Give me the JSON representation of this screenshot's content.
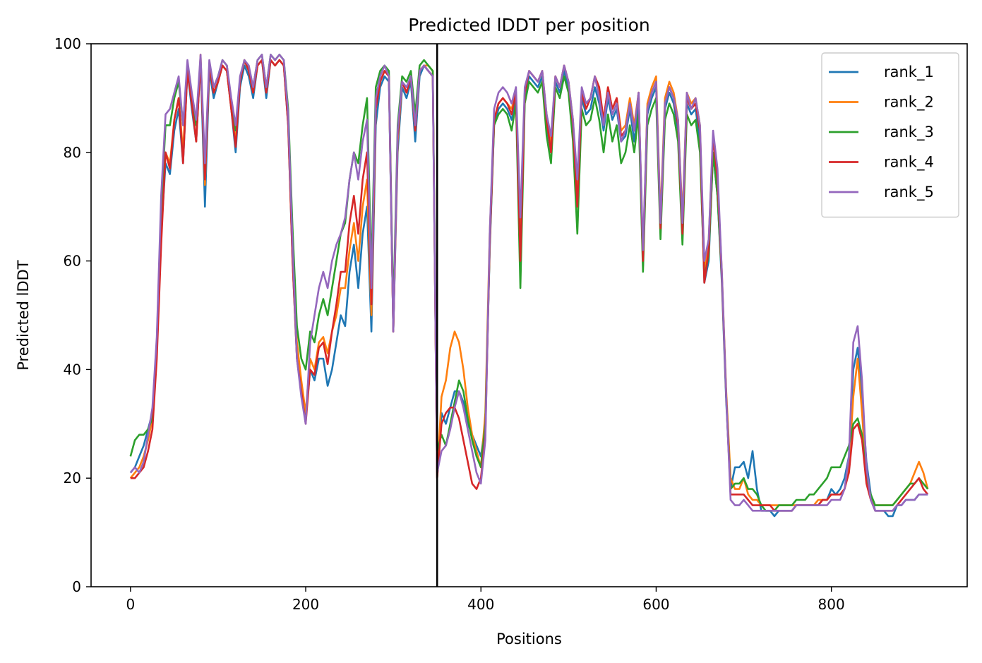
{
  "chart_data": {
    "type": "line",
    "title": "Predicted lDDT per position",
    "xlabel": "Positions",
    "ylabel": "Predicted lDDT",
    "xlim": [
      -45,
      955
    ],
    "ylim": [
      0,
      100
    ],
    "xticks": [
      0,
      200,
      400,
      600,
      800
    ],
    "yticks": [
      0,
      20,
      40,
      60,
      80,
      100
    ],
    "grid": false,
    "legend_position": "top-right",
    "vline_x": 350,
    "series": [
      {
        "name": "rank_1",
        "color": "#1f77b4"
      },
      {
        "name": "rank_2",
        "color": "#ff7f0e"
      },
      {
        "name": "rank_3",
        "color": "#2ca02c"
      },
      {
        "name": "rank_4",
        "color": "#d62728"
      },
      {
        "name": "rank_5",
        "color": "#9467bd"
      }
    ],
    "x": [
      0,
      5,
      10,
      15,
      20,
      25,
      30,
      35,
      40,
      45,
      50,
      55,
      60,
      65,
      70,
      75,
      80,
      85,
      90,
      95,
      100,
      105,
      110,
      115,
      120,
      125,
      130,
      135,
      140,
      145,
      150,
      155,
      160,
      165,
      170,
      175,
      180,
      185,
      190,
      195,
      200,
      205,
      210,
      215,
      220,
      225,
      230,
      235,
      240,
      245,
      250,
      255,
      260,
      265,
      270,
      275,
      280,
      285,
      290,
      295,
      300,
      305,
      310,
      315,
      320,
      325,
      330,
      335,
      340,
      345,
      350,
      355,
      360,
      365,
      370,
      375,
      380,
      385,
      390,
      395,
      400,
      405,
      410,
      415,
      420,
      425,
      430,
      435,
      440,
      445,
      450,
      455,
      460,
      465,
      470,
      475,
      480,
      485,
      490,
      495,
      500,
      505,
      510,
      515,
      520,
      525,
      530,
      535,
      540,
      545,
      550,
      555,
      560,
      565,
      570,
      575,
      580,
      585,
      590,
      595,
      600,
      605,
      610,
      615,
      620,
      625,
      630,
      635,
      640,
      645,
      650,
      655,
      660,
      665,
      670,
      675,
      680,
      685,
      690,
      695,
      700,
      705,
      710,
      715,
      720,
      725,
      730,
      735,
      740,
      745,
      750,
      755,
      760,
      765,
      770,
      775,
      780,
      785,
      790,
      795,
      800,
      805,
      810,
      815,
      820,
      825,
      830,
      835,
      840,
      845,
      850,
      855,
      860,
      865,
      870,
      875,
      880,
      885,
      890,
      895,
      900,
      905,
      910
    ],
    "values": {
      "rank_1": [
        21,
        22,
        24,
        26,
        29,
        32,
        44,
        65,
        78,
        76,
        84,
        88,
        78,
        95,
        88,
        82,
        97,
        70,
        95,
        90,
        93,
        96,
        95,
        88,
        80,
        92,
        96,
        94,
        90,
        96,
        97,
        90,
        97,
        96,
        97,
        96,
        85,
        60,
        42,
        36,
        31,
        40,
        38,
        42,
        42,
        37,
        40,
        45,
        50,
        48,
        58,
        63,
        55,
        65,
        70,
        47,
        85,
        92,
        94,
        93,
        47,
        80,
        92,
        90,
        93,
        82,
        94,
        96,
        95,
        94,
        20,
        32,
        30,
        33,
        36,
        36,
        34,
        30,
        28,
        26,
        24,
        30,
        62,
        85,
        88,
        89,
        88,
        86,
        90,
        60,
        90,
        94,
        93,
        92,
        94,
        85,
        80,
        93,
        91,
        95,
        92,
        84,
        70,
        90,
        87,
        88,
        92,
        89,
        84,
        90,
        86,
        88,
        82,
        83,
        88,
        82,
        89,
        59,
        87,
        90,
        92,
        66,
        88,
        91,
        89,
        84,
        65,
        89,
        87,
        88,
        82,
        56,
        60,
        80,
        72,
        56,
        34,
        18,
        22,
        22,
        23,
        20,
        25,
        18,
        14,
        14,
        14,
        13,
        14,
        14,
        14,
        14,
        15,
        15,
        15,
        15,
        15,
        15,
        16,
        16,
        18,
        17,
        18,
        20,
        24,
        40,
        44,
        35,
        23,
        17,
        14,
        14,
        14,
        13,
        13,
        15,
        15,
        16,
        16,
        16,
        17,
        17,
        17
      ],
      "rank_2": [
        20,
        21,
        22,
        24,
        27,
        31,
        44,
        65,
        80,
        78,
        86,
        90,
        80,
        96,
        89,
        82,
        98,
        74,
        96,
        91,
        93,
        96,
        95,
        88,
        82,
        93,
        97,
        95,
        91,
        96,
        97,
        91,
        97,
        96,
        97,
        96,
        86,
        62,
        45,
        38,
        32,
        42,
        40,
        45,
        46,
        43,
        47,
        50,
        55,
        55,
        62,
        67,
        60,
        70,
        75,
        50,
        88,
        93,
        95,
        94,
        47,
        82,
        93,
        91,
        94,
        84,
        95,
        96,
        96,
        95,
        20,
        35,
        38,
        44,
        47,
        45,
        40,
        33,
        28,
        25,
        22,
        32,
        65,
        86,
        89,
        90,
        89,
        88,
        91,
        63,
        91,
        95,
        94,
        93,
        95,
        87,
        82,
        94,
        92,
        96,
        93,
        86,
        72,
        91,
        89,
        90,
        94,
        91,
        86,
        92,
        88,
        90,
        84,
        85,
        90,
        85,
        91,
        61,
        89,
        92,
        94,
        68,
        90,
        93,
        91,
        86,
        68,
        91,
        89,
        90,
        85,
        58,
        64,
        83,
        75,
        58,
        36,
        20,
        18,
        18,
        20,
        17,
        16,
        16,
        15,
        15,
        15,
        15,
        15,
        15,
        15,
        15,
        15,
        15,
        15,
        15,
        15,
        16,
        16,
        16,
        17,
        17,
        17,
        18,
        22,
        35,
        42,
        32,
        20,
        16,
        15,
        15,
        15,
        15,
        15,
        16,
        17,
        18,
        19,
        21,
        23,
        21,
        18
      ],
      "rank_3": [
        24,
        27,
        28,
        28,
        29,
        31,
        45,
        70,
        85,
        85,
        90,
        93,
        85,
        96,
        90,
        85,
        97,
        76,
        96,
        92,
        94,
        97,
        96,
        89,
        84,
        93,
        97,
        95,
        92,
        97,
        98,
        92,
        98,
        97,
        98,
        97,
        88,
        66,
        48,
        42,
        40,
        47,
        45,
        50,
        53,
        50,
        55,
        60,
        65,
        67,
        75,
        80,
        78,
        85,
        90,
        58,
        92,
        95,
        96,
        95,
        50,
        85,
        94,
        93,
        95,
        87,
        96,
        97,
        96,
        95,
        25,
        28,
        26,
        30,
        34,
        38,
        36,
        31,
        27,
        24,
        22,
        30,
        63,
        85,
        87,
        88,
        87,
        84,
        89,
        55,
        89,
        93,
        92,
        91,
        93,
        83,
        78,
        92,
        90,
        94,
        91,
        82,
        65,
        88,
        85,
        86,
        90,
        86,
        80,
        87,
        82,
        85,
        78,
        80,
        85,
        80,
        87,
        58,
        85,
        88,
        90,
        64,
        86,
        89,
        87,
        82,
        63,
        87,
        85,
        86,
        80,
        57,
        61,
        80,
        72,
        57,
        35,
        18,
        19,
        19,
        20,
        18,
        18,
        17,
        15,
        14,
        14,
        14,
        15,
        15,
        15,
        15,
        16,
        16,
        16,
        17,
        17,
        18,
        19,
        20,
        22,
        22,
        22,
        24,
        26,
        30,
        31,
        28,
        20,
        17,
        15,
        15,
        15,
        15,
        15,
        16,
        17,
        18,
        19,
        19,
        20,
        19,
        18
      ],
      "rank_4": [
        20,
        20,
        21,
        22,
        25,
        29,
        42,
        63,
        80,
        77,
        86,
        90,
        78,
        95,
        89,
        82,
        97,
        75,
        96,
        91,
        93,
        96,
        95,
        88,
        81,
        93,
        97,
        95,
        91,
        96,
        97,
        91,
        97,
        96,
        97,
        96,
        85,
        60,
        42,
        36,
        30,
        40,
        39,
        44,
        45,
        41,
        47,
        52,
        58,
        58,
        67,
        72,
        65,
        75,
        80,
        52,
        88,
        93,
        95,
        94,
        47,
        83,
        93,
        91,
        94,
        84,
        95,
        96,
        95,
        94,
        20,
        30,
        32,
        33,
        33,
        31,
        27,
        23,
        19,
        18,
        20,
        28,
        63,
        86,
        89,
        90,
        89,
        87,
        91,
        60,
        91,
        95,
        94,
        93,
        95,
        86,
        80,
        94,
        92,
        96,
        93,
        85,
        70,
        91,
        88,
        90,
        94,
        92,
        86,
        92,
        88,
        90,
        83,
        84,
        89,
        84,
        91,
        60,
        88,
        91,
        93,
        66,
        89,
        92,
        90,
        85,
        65,
        90,
        88,
        89,
        84,
        56,
        62,
        83,
        75,
        57,
        35,
        17,
        17,
        17,
        17,
        16,
        15,
        15,
        15,
        15,
        15,
        14,
        14,
        14,
        14,
        14,
        15,
        15,
        15,
        15,
        15,
        15,
        16,
        16,
        17,
        17,
        17,
        18,
        21,
        29,
        30,
        27,
        19,
        16,
        14,
        14,
        14,
        14,
        14,
        15,
        16,
        17,
        18,
        19,
        20,
        18,
        17
      ],
      "rank_5": [
        21,
        22,
        21,
        23,
        28,
        33,
        46,
        72,
        87,
        88,
        91,
        94,
        85,
        97,
        91,
        86,
        98,
        78,
        97,
        92,
        94,
        97,
        96,
        90,
        85,
        94,
        97,
        96,
        92,
        97,
        98,
        92,
        98,
        97,
        98,
        97,
        87,
        63,
        42,
        35,
        30,
        45,
        50,
        55,
        58,
        55,
        60,
        63,
        65,
        68,
        75,
        80,
        75,
        82,
        86,
        55,
        90,
        94,
        96,
        94,
        47,
        84,
        93,
        92,
        94,
        85,
        95,
        96,
        95,
        94,
        21,
        25,
        26,
        29,
        33,
        36,
        33,
        29,
        25,
        21,
        19,
        27,
        65,
        88,
        91,
        92,
        91,
        89,
        92,
        68,
        92,
        95,
        94,
        93,
        95,
        87,
        83,
        94,
        92,
        96,
        93,
        86,
        75,
        92,
        89,
        90,
        94,
        90,
        85,
        91,
        87,
        89,
        82,
        84,
        89,
        84,
        91,
        62,
        88,
        91,
        93,
        67,
        89,
        92,
        90,
        86,
        67,
        91,
        88,
        90,
        85,
        60,
        64,
        84,
        77,
        58,
        35,
        16,
        15,
        15,
        16,
        15,
        14,
        14,
        14,
        14,
        14,
        14,
        14,
        14,
        14,
        14,
        15,
        15,
        15,
        15,
        15,
        15,
        15,
        15,
        16,
        16,
        16,
        18,
        24,
        45,
        48,
        38,
        22,
        16,
        14,
        14,
        14,
        14,
        14,
        15,
        15,
        16,
        16,
        16,
        17,
        17,
        17
      ]
    }
  }
}
